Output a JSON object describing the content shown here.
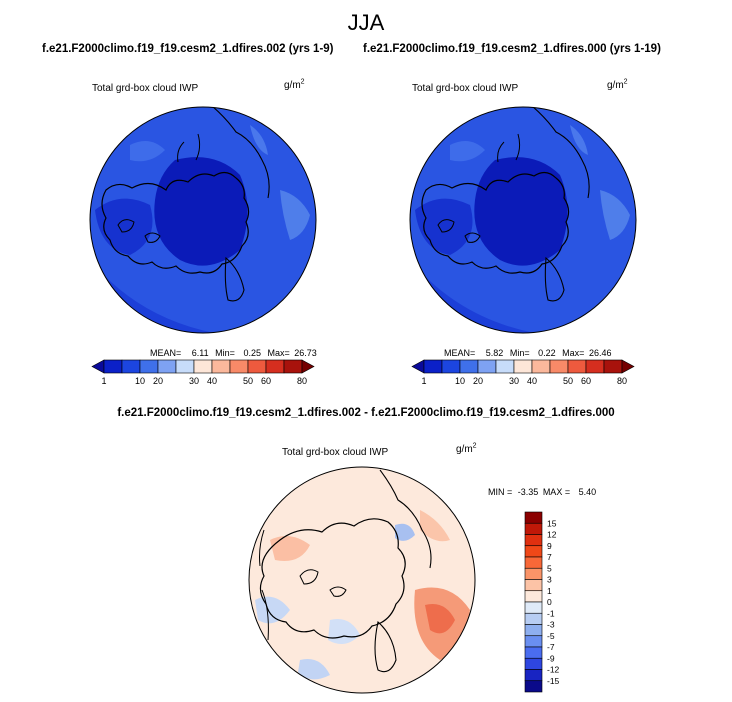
{
  "chart_data": [
    {
      "type": "heatmap",
      "projection": "north-polar-stereographic",
      "title": "JJA",
      "run_label": "f.e21.F2000climo.f19_f19.cesm2_1.dfires.002 (yrs 1-9)",
      "variable": "Total grd-box cloud IWP",
      "units": "g/m2",
      "stats": {
        "mean": "6.11",
        "min": "0.25",
        "max": "26.73"
      },
      "stats_labels": {
        "mean": "MEAN=",
        "min": "Min=",
        "max": "Max="
      },
      "colorbar": {
        "levels": [
          "1",
          "10",
          "20",
          "30",
          "40",
          "50",
          "60",
          "80"
        ],
        "colors": [
          "#0a0a9a",
          "#0b20c8",
          "#1c45e0",
          "#3f70ea",
          "#7ea2f3",
          "#c7dcfa",
          "#fde6d8",
          "#fbb89c",
          "#f88a68",
          "#ee5a3e",
          "#d52e1f",
          "#a8120c",
          "#740000"
        ]
      }
    },
    {
      "type": "heatmap",
      "projection": "north-polar-stereographic",
      "run_label": "f.e21.F2000climo.f19_f19.cesm2_1.dfires.000 (yrs 1-19)",
      "variable": "Total grd-box cloud IWP",
      "units": "g/m2",
      "stats": {
        "mean": "5.82",
        "min": "0.22",
        "max": "26.46"
      },
      "stats_labels": {
        "mean": "MEAN=",
        "min": "Min=",
        "max": "Max="
      },
      "colorbar": {
        "levels": [
          "1",
          "10",
          "20",
          "30",
          "40",
          "50",
          "60",
          "80"
        ],
        "colors": [
          "#0a0a9a",
          "#0b20c8",
          "#1c45e0",
          "#3f70ea",
          "#7ea2f3",
          "#c7dcfa",
          "#fde6d8",
          "#fbb89c",
          "#f88a68",
          "#ee5a3e",
          "#d52e1f",
          "#a8120c",
          "#740000"
        ]
      }
    },
    {
      "type": "heatmap",
      "projection": "north-polar-stereographic",
      "difference_label": "f.e21.F2000climo.f19_f19.cesm2_1.dfires.002 - f.e21.F2000climo.f19_f19.cesm2_1.dfires.000",
      "variable": "Total grd-box cloud IWP",
      "units": "g/m2",
      "stats": {
        "min": "-3.35",
        "max": "5.40"
      },
      "stats_labels": {
        "min": "MIN =",
        "max": "MAX ="
      },
      "colorbar": {
        "levels": [
          "15",
          "12",
          "9",
          "7",
          "5",
          "3",
          "1",
          "0",
          "-1",
          "-3",
          "-5",
          "-7",
          "-9",
          "-12",
          "-15"
        ],
        "colors": [
          "#8b0000",
          "#c01808",
          "#e03010",
          "#f04818",
          "#f86838",
          "#fa9468",
          "#fcc3a6",
          "#fde9dc",
          "#dfeaf8",
          "#b7cdf3",
          "#8eafef",
          "#6a8ff0",
          "#4a6df0",
          "#2e46e0",
          "#1824c2",
          "#0a0a8a"
        ]
      }
    }
  ]
}
